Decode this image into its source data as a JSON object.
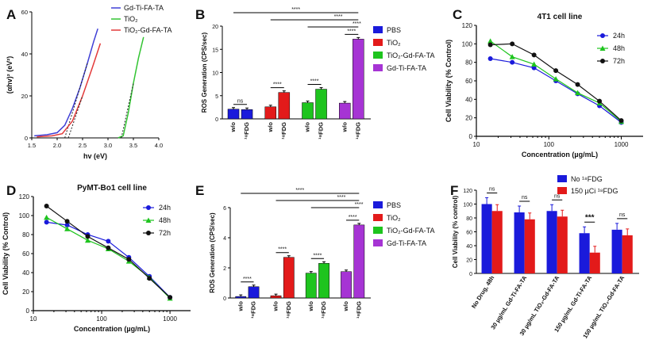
{
  "chart_data": [
    {
      "panel": "A",
      "type": "line",
      "xlabel": "hv (eV)",
      "ylabel": "(αhv)² (eV²)",
      "xlim": [
        1.5,
        4.0
      ],
      "ylim": [
        0,
        60
      ],
      "xticks": [
        "1.5",
        "2.0",
        "2.5",
        "3.0",
        "3.5",
        "4.0"
      ],
      "yticks": [
        "0",
        "20",
        "40",
        "60"
      ],
      "series": [
        {
          "name": "Gd-Ti-FA-TA",
          "color": "#3f3fd6",
          "points": [
            [
              1.55,
              1
            ],
            [
              1.8,
              1.5
            ],
            [
              2.0,
              2.5
            ],
            [
              2.15,
              6
            ],
            [
              2.3,
              14
            ],
            [
              2.45,
              24
            ],
            [
              2.6,
              36
            ],
            [
              2.72,
              46
            ],
            [
              2.8,
              52
            ]
          ]
        },
        {
          "name": "TiO₂",
          "color": "#33c433",
          "points": [
            [
              3.2,
              0
            ],
            [
              3.3,
              1
            ],
            [
              3.4,
              12
            ],
            [
              3.5,
              26
            ],
            [
              3.6,
              38
            ],
            [
              3.7,
              48
            ]
          ]
        },
        {
          "name": "TiO₂-Gd-FA-TA",
          "color": "#e33a3a",
          "points": [
            [
              1.6,
              0.5
            ],
            [
              1.9,
              1
            ],
            [
              2.1,
              2
            ],
            [
              2.3,
              8
            ],
            [
              2.5,
              20
            ],
            [
              2.7,
              34
            ],
            [
              2.85,
              45
            ]
          ]
        }
      ]
    },
    {
      "panel": "B",
      "type": "bar",
      "ylabel": "ROS Generation (CPS/sec)",
      "ylim": [
        0,
        20
      ],
      "yticks": [
        "0",
        "5",
        "10",
        "15",
        "20"
      ],
      "legend": [
        "PBS",
        "TiO₂",
        "TiO₂-Gd-FA-TA",
        "Gd-Ti-FA-TA"
      ],
      "colors": [
        "#1a1adb",
        "#e31a1a",
        "#1ec41e",
        "#a634d4"
      ],
      "groups": [
        {
          "w/o": 2.1,
          "with": 2.0
        },
        {
          "w/o": 2.6,
          "with": 5.7
        },
        {
          "w/o": 3.5,
          "with": 6.4
        },
        {
          "w/o": 3.4,
          "with": 17.2
        }
      ],
      "sig": [
        "ns",
        "****",
        "****",
        "****"
      ],
      "brackets": [
        "****",
        "****",
        "****"
      ],
      "xlabels": [
        "w/o",
        "¹⁸FDG"
      ]
    },
    {
      "panel": "C",
      "type": "scatter",
      "title": "4T1 cell line",
      "xlabel": "Concentration (µg/mL)",
      "ylabel": "Cell Viability (% Control)",
      "xlim": [
        10,
        2000
      ],
      "ylim": [
        0,
        120
      ],
      "xticks": [
        "10",
        "100",
        "1000"
      ],
      "yticks": [
        "0",
        "20",
        "40",
        "60",
        "80",
        "100",
        "120"
      ],
      "series": [
        {
          "name": "24h",
          "color": "#1a1adb",
          "x": [
            15.6,
            31.25,
            62.5,
            125,
            250,
            500,
            1000
          ],
          "y": [
            84,
            80,
            74,
            60,
            46,
            33,
            15
          ]
        },
        {
          "name": "48h",
          "color": "#1ec41e",
          "x": [
            15.6,
            31.25,
            62.5,
            125,
            250,
            500,
            1000
          ],
          "y": [
            103,
            86,
            78,
            62,
            47,
            36,
            16
          ]
        },
        {
          "name": "72h",
          "color": "#111111",
          "x": [
            15.6,
            31.25,
            62.5,
            125,
            250,
            500,
            1000
          ],
          "y": [
            99,
            100,
            88,
            71,
            56,
            38,
            17
          ]
        }
      ]
    },
    {
      "panel": "D",
      "type": "scatter",
      "title": "PyMT-Bo1 cell line",
      "xlabel": "Concentration (µg/mL)",
      "ylabel": "Cell Viability (% Control)",
      "xlim": [
        10,
        2000
      ],
      "ylim": [
        0,
        120
      ],
      "xticks": [
        "10",
        "100",
        "1000"
      ],
      "yticks": [
        "0",
        "20",
        "40",
        "60",
        "80",
        "100",
        "120"
      ],
      "series": [
        {
          "name": "24h",
          "color": "#1a1adb",
          "x": [
            15.6,
            31.25,
            62.5,
            125,
            250,
            500,
            1000
          ],
          "y": [
            93,
            90,
            80,
            73,
            56,
            36,
            14
          ]
        },
        {
          "name": "48h",
          "color": "#1ec41e",
          "x": [
            15.6,
            31.25,
            62.5,
            125,
            250,
            500,
            1000
          ],
          "y": [
            98,
            86,
            74,
            65,
            52,
            35,
            13
          ]
        },
        {
          "name": "72h",
          "color": "#111111",
          "x": [
            15.6,
            31.25,
            62.5,
            125,
            250,
            500,
            1000
          ],
          "y": [
            110,
            94,
            78,
            66,
            54,
            34,
            14
          ]
        }
      ]
    },
    {
      "panel": "E",
      "type": "bar",
      "ylabel": "ROS Generation (CPS/sec)",
      "ylim": [
        0,
        6
      ],
      "yticks": [
        "0",
        "2",
        "4",
        "6"
      ],
      "legend": [
        "PBS",
        "TiO₂",
        "TiO₂-Gd-FA-TA",
        "Gd-Ti-FA-TA"
      ],
      "colors": [
        "#1a1adb",
        "#e31a1a",
        "#1ec41e",
        "#a634d4"
      ],
      "groups": [
        {
          "w/o": 0.1,
          "with": 0.75
        },
        {
          "w/o": 0.15,
          "with": 2.7
        },
        {
          "w/o": 1.65,
          "with": 2.3
        },
        {
          "w/o": 1.75,
          "with": 4.85
        }
      ],
      "sig": [
        "****",
        "****",
        "****",
        "****"
      ],
      "brackets": [
        "****",
        "****",
        "****"
      ],
      "xlabels": [
        "w/o",
        "¹⁸FDG"
      ]
    },
    {
      "panel": "F",
      "type": "bar",
      "ylabel": "Cell Viability (% control)",
      "ylim": [
        0,
        120
      ],
      "yticks": [
        "0",
        "20",
        "40",
        "60",
        "80",
        "100",
        "120"
      ],
      "legend": [
        "No ¹⁸FDG",
        "150 µCi ¹⁸FDG"
      ],
      "colors": [
        "#1a1adb",
        "#e31a1a"
      ],
      "categories": [
        "No Drug, 48h",
        "30 µg/mL Gd-Ti-FA-TA",
        "30 µg/mL TiO₂-Gd-FA-TA",
        "150 µg/mL Gd-Ti-FA-TA",
        "150 µg/mL TiO₂-Gd-FA-TA"
      ],
      "series": [
        {
          "name": "No ¹⁸FDG",
          "values": [
            100,
            88,
            90,
            58,
            63
          ]
        },
        {
          "name": "150 µCi ¹⁸FDG",
          "values": [
            90,
            78,
            82,
            30,
            55
          ]
        }
      ],
      "sig": [
        "ns",
        "ns",
        "ns",
        "***",
        "ns"
      ]
    }
  ]
}
